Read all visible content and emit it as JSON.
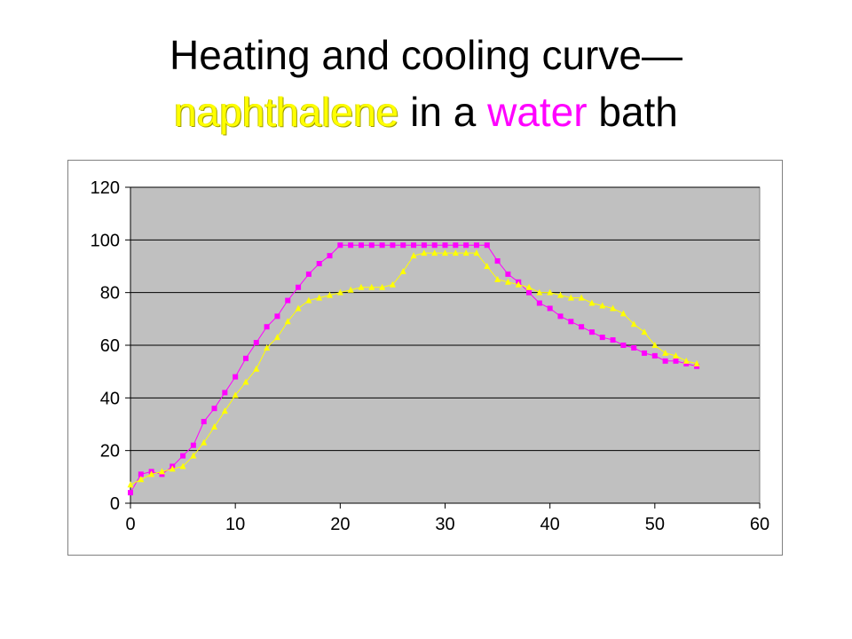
{
  "title": {
    "line1": "Heating and cooling curve—",
    "line2_part1": "naphthalene",
    "line2_part2": " in a ",
    "line2_part3": "water",
    "line2_part4": " bath"
  },
  "colors": {
    "plot_background": "#c0c0c0",
    "magenta": "#ff00ff",
    "yellow": "#ffff00",
    "gridline": "#000000"
  },
  "chart_data": {
    "type": "line",
    "title": "Heating and cooling curve— naphthalene in a water bath",
    "xlabel": "",
    "ylabel": "",
    "xlim": [
      0,
      60
    ],
    "ylim": [
      0,
      120
    ],
    "xticks": [
      0,
      10,
      20,
      30,
      40,
      50,
      60
    ],
    "yticks": [
      0,
      20,
      40,
      60,
      80,
      100,
      120
    ],
    "grid": "horizontal",
    "legend": "none",
    "series": [
      {
        "color": "#ff00ff",
        "marker": "square",
        "x": [
          0,
          1,
          2,
          3,
          4,
          5,
          6,
          7,
          8,
          9,
          10,
          11,
          12,
          13,
          14,
          15,
          16,
          17,
          18,
          19,
          20,
          21,
          22,
          23,
          24,
          25,
          26,
          27,
          28,
          29,
          30,
          31,
          32,
          33,
          34,
          35,
          36,
          37,
          38,
          39,
          40,
          41,
          42,
          43,
          44,
          45,
          46,
          47,
          48,
          49,
          50,
          51,
          52,
          53,
          54
        ],
        "y": [
          4,
          11,
          12,
          11,
          14,
          18,
          22,
          31,
          36,
          42,
          48,
          55,
          61,
          67,
          71,
          77,
          82,
          87,
          91,
          94,
          98,
          98,
          98,
          98,
          98,
          98,
          98,
          98,
          98,
          98,
          98,
          98,
          98,
          98,
          98,
          92,
          87,
          84,
          80,
          76,
          74,
          71,
          69,
          67,
          65,
          63,
          62,
          60,
          59,
          57,
          56,
          54,
          54,
          53,
          52
        ]
      },
      {
        "color": "#ffff00",
        "marker": "triangle",
        "x": [
          0,
          1,
          2,
          3,
          4,
          5,
          6,
          7,
          8,
          9,
          10,
          11,
          12,
          13,
          14,
          15,
          16,
          17,
          18,
          19,
          20,
          21,
          22,
          23,
          24,
          25,
          26,
          27,
          28,
          29,
          30,
          31,
          32,
          33,
          34,
          35,
          36,
          37,
          38,
          39,
          40,
          41,
          42,
          43,
          44,
          45,
          46,
          47,
          48,
          49,
          50,
          51,
          52,
          53,
          54
        ],
        "y": [
          7,
          9,
          11,
          12,
          13,
          14,
          18,
          23,
          29,
          35,
          41,
          46,
          51,
          59,
          63,
          69,
          74,
          77,
          78,
          79,
          80,
          81,
          82,
          82,
          82,
          83,
          88,
          94,
          95,
          95,
          95,
          95,
          95,
          95,
          90,
          85,
          84,
          83,
          82,
          80,
          80,
          79,
          78,
          78,
          76,
          75,
          74,
          72,
          68,
          65,
          60,
          57,
          56,
          54,
          53
        ]
      }
    ]
  }
}
